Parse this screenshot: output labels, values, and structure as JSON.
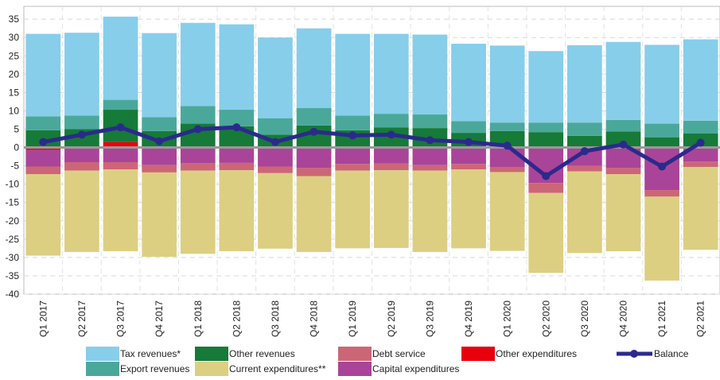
{
  "chart_data": {
    "type": "bar",
    "categories": [
      "Q1 2017",
      "Q2 2017",
      "Q3 2017",
      "Q4 2017",
      "Q1 2018",
      "Q2 2018",
      "Q3 2018",
      "Q4 2018",
      "Q1 2019",
      "Q2 2019",
      "Q3 2019",
      "Q4 2019",
      "Q1 2020",
      "Q2 2020",
      "Q3 2020",
      "Q4 2020",
      "Q1 2021",
      "Q2 2021"
    ],
    "series": [
      {
        "name": "Tax revenues*",
        "color": "#87ceeb",
        "values": [
          22.5,
          22.6,
          22.7,
          22.9,
          22.7,
          23.3,
          22,
          21.7,
          22.3,
          21.8,
          21.8,
          21.1,
          21,
          19.5,
          21.1,
          21.3,
          21.5,
          22.2
        ]
      },
      {
        "name": "Other revenues",
        "color": "#167a38",
        "values": [
          4.7,
          5.0,
          8.8,
          4.5,
          6.5,
          5.8,
          3.5,
          6,
          4.7,
          5.5,
          5.3,
          4,
          4.5,
          4.2,
          3.2,
          4.4,
          2.8,
          3.8
        ]
      },
      {
        "name": "Debt service",
        "color": "#cc6677",
        "values": [
          -2.1,
          -2.3,
          -2,
          -2,
          -2,
          -2,
          -1.8,
          -2.2,
          -1.8,
          -1.8,
          -1.5,
          -1.5,
          -1.4,
          -2.7,
          -1.5,
          -1.7,
          -1.8,
          -1.5
        ]
      },
      {
        "name": "Other expenditures",
        "color": "#e8000b",
        "values": [
          -0.7,
          0,
          1.5,
          0,
          0,
          0,
          0,
          0,
          0,
          0,
          0,
          0,
          0,
          0,
          0,
          0,
          0,
          0
        ]
      },
      {
        "name": "Balance",
        "color": "#2b2a8c",
        "line": true,
        "values": [
          1.5,
          3.5,
          5.5,
          1.7,
          5,
          5.5,
          1.5,
          4.3,
          3.3,
          3.5,
          2,
          1.5,
          0.5,
          -7.8,
          -1,
          0.8,
          -5.2,
          1.3
        ]
      },
      {
        "name": "Export revenues",
        "color": "#4aa89a",
        "values": [
          3.8,
          3.7,
          2.7,
          3.8,
          4.8,
          4.5,
          4.5,
          4.8,
          4,
          3.7,
          3.7,
          3.2,
          2.3,
          2.6,
          3.6,
          3.1,
          3.7,
          3.5
        ]
      },
      {
        "name": "Current expenditures**",
        "color": "#dccf82",
        "values": [
          -22.2,
          -22.2,
          -22.3,
          -23,
          -22.7,
          -22.1,
          -20.6,
          -20.7,
          -21.2,
          -21.2,
          -22.2,
          -21.5,
          -21.5,
          -21.8,
          -22.3,
          -21,
          -22.9,
          -22.6
        ]
      },
      {
        "name": "Capital expenditures",
        "color": "#aa4499",
        "values": [
          -4.5,
          -4,
          -4,
          -4.8,
          -4.3,
          -4.2,
          -5.2,
          -5.6,
          -4.5,
          -4.4,
          -4.8,
          -4.5,
          -5.3,
          -9.7,
          -5,
          -5.6,
          -11.6,
          -3.8
        ]
      }
    ],
    "ylim": [
      -40,
      38.5
    ],
    "yticks": [
      -40,
      -35,
      -30,
      -25,
      -20,
      -15,
      -10,
      -5,
      0,
      5,
      10,
      15,
      20,
      25,
      30,
      35
    ],
    "grid": true
  }
}
